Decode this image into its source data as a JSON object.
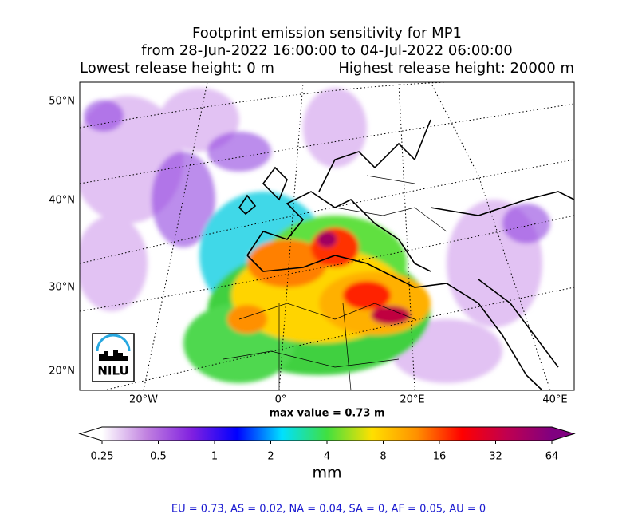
{
  "title": {
    "line1": "Footprint emission sensitivity for MP1",
    "line2": "from 28-Jun-2022 16:00:00 to 04-Jul-2022 06:00:00",
    "left": "Lowest release height: 0 m",
    "right": "Highest release height: 20000 m"
  },
  "map": {
    "lat_labels": [
      "50°N",
      "40°N",
      "30°N",
      "20°N"
    ],
    "lon_labels": [
      "20°W",
      "0°",
      "20°E",
      "40°E"
    ],
    "logo": "NILU",
    "max_value": "max value = 0.73 m"
  },
  "colorbar": {
    "log": true,
    "ticks": [
      0.25,
      0.5,
      1,
      2,
      4,
      8,
      16,
      32,
      64
    ],
    "label": "mm",
    "colors": [
      "#ffffff",
      "#c080e0",
      "#8020e0",
      "#0000ff",
      "#00e0ff",
      "#40e040",
      "#ffe000",
      "#ff9000",
      "#ff0000",
      "#c00050",
      "#800080"
    ]
  },
  "footer": "EU = 0.73,  AS = 0.02,  NA = 0.04,  SA = 0,  AF = 0.05,  AU = 0"
}
